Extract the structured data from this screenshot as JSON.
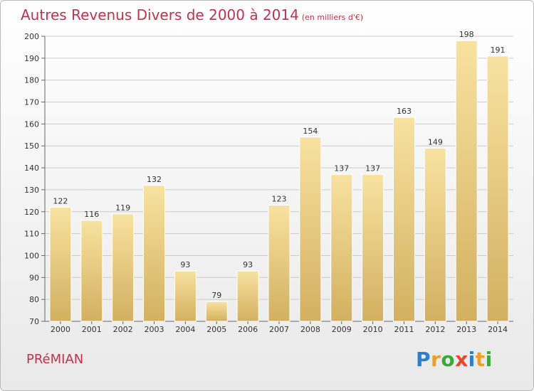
{
  "title": "Autres Revenus Divers de 2000 à 2014",
  "subtitle": "(en milliers d'€)",
  "place": "PRéMIAN",
  "logo": {
    "letters": [
      "P",
      "r",
      "o",
      "x",
      "i",
      "t",
      "i"
    ],
    "colors": [
      "#2a7fd0",
      "#f0a020",
      "#3aa83a",
      "#e8452c",
      "#2a7fd0",
      "#f0a020",
      "#3aa83a"
    ]
  },
  "colors": {
    "title": "#c4314e",
    "bar_top": "#f8e2a0",
    "bar_bottom": "#d2b060",
    "grid": "#cccccc"
  },
  "chart_data": {
    "type": "bar",
    "categories": [
      "2000",
      "2001",
      "2002",
      "2003",
      "2004",
      "2005",
      "2006",
      "2007",
      "2008",
      "2009",
      "2010",
      "2011",
      "2012",
      "2013",
      "2014"
    ],
    "values": [
      122,
      116,
      119,
      132,
      93,
      79,
      93,
      123,
      154,
      137,
      137,
      163,
      149,
      198,
      191
    ],
    "ylim": [
      70,
      200
    ],
    "yticks": [
      70,
      80,
      90,
      100,
      110,
      120,
      130,
      140,
      150,
      160,
      170,
      180,
      190,
      200
    ],
    "grid": true
  }
}
